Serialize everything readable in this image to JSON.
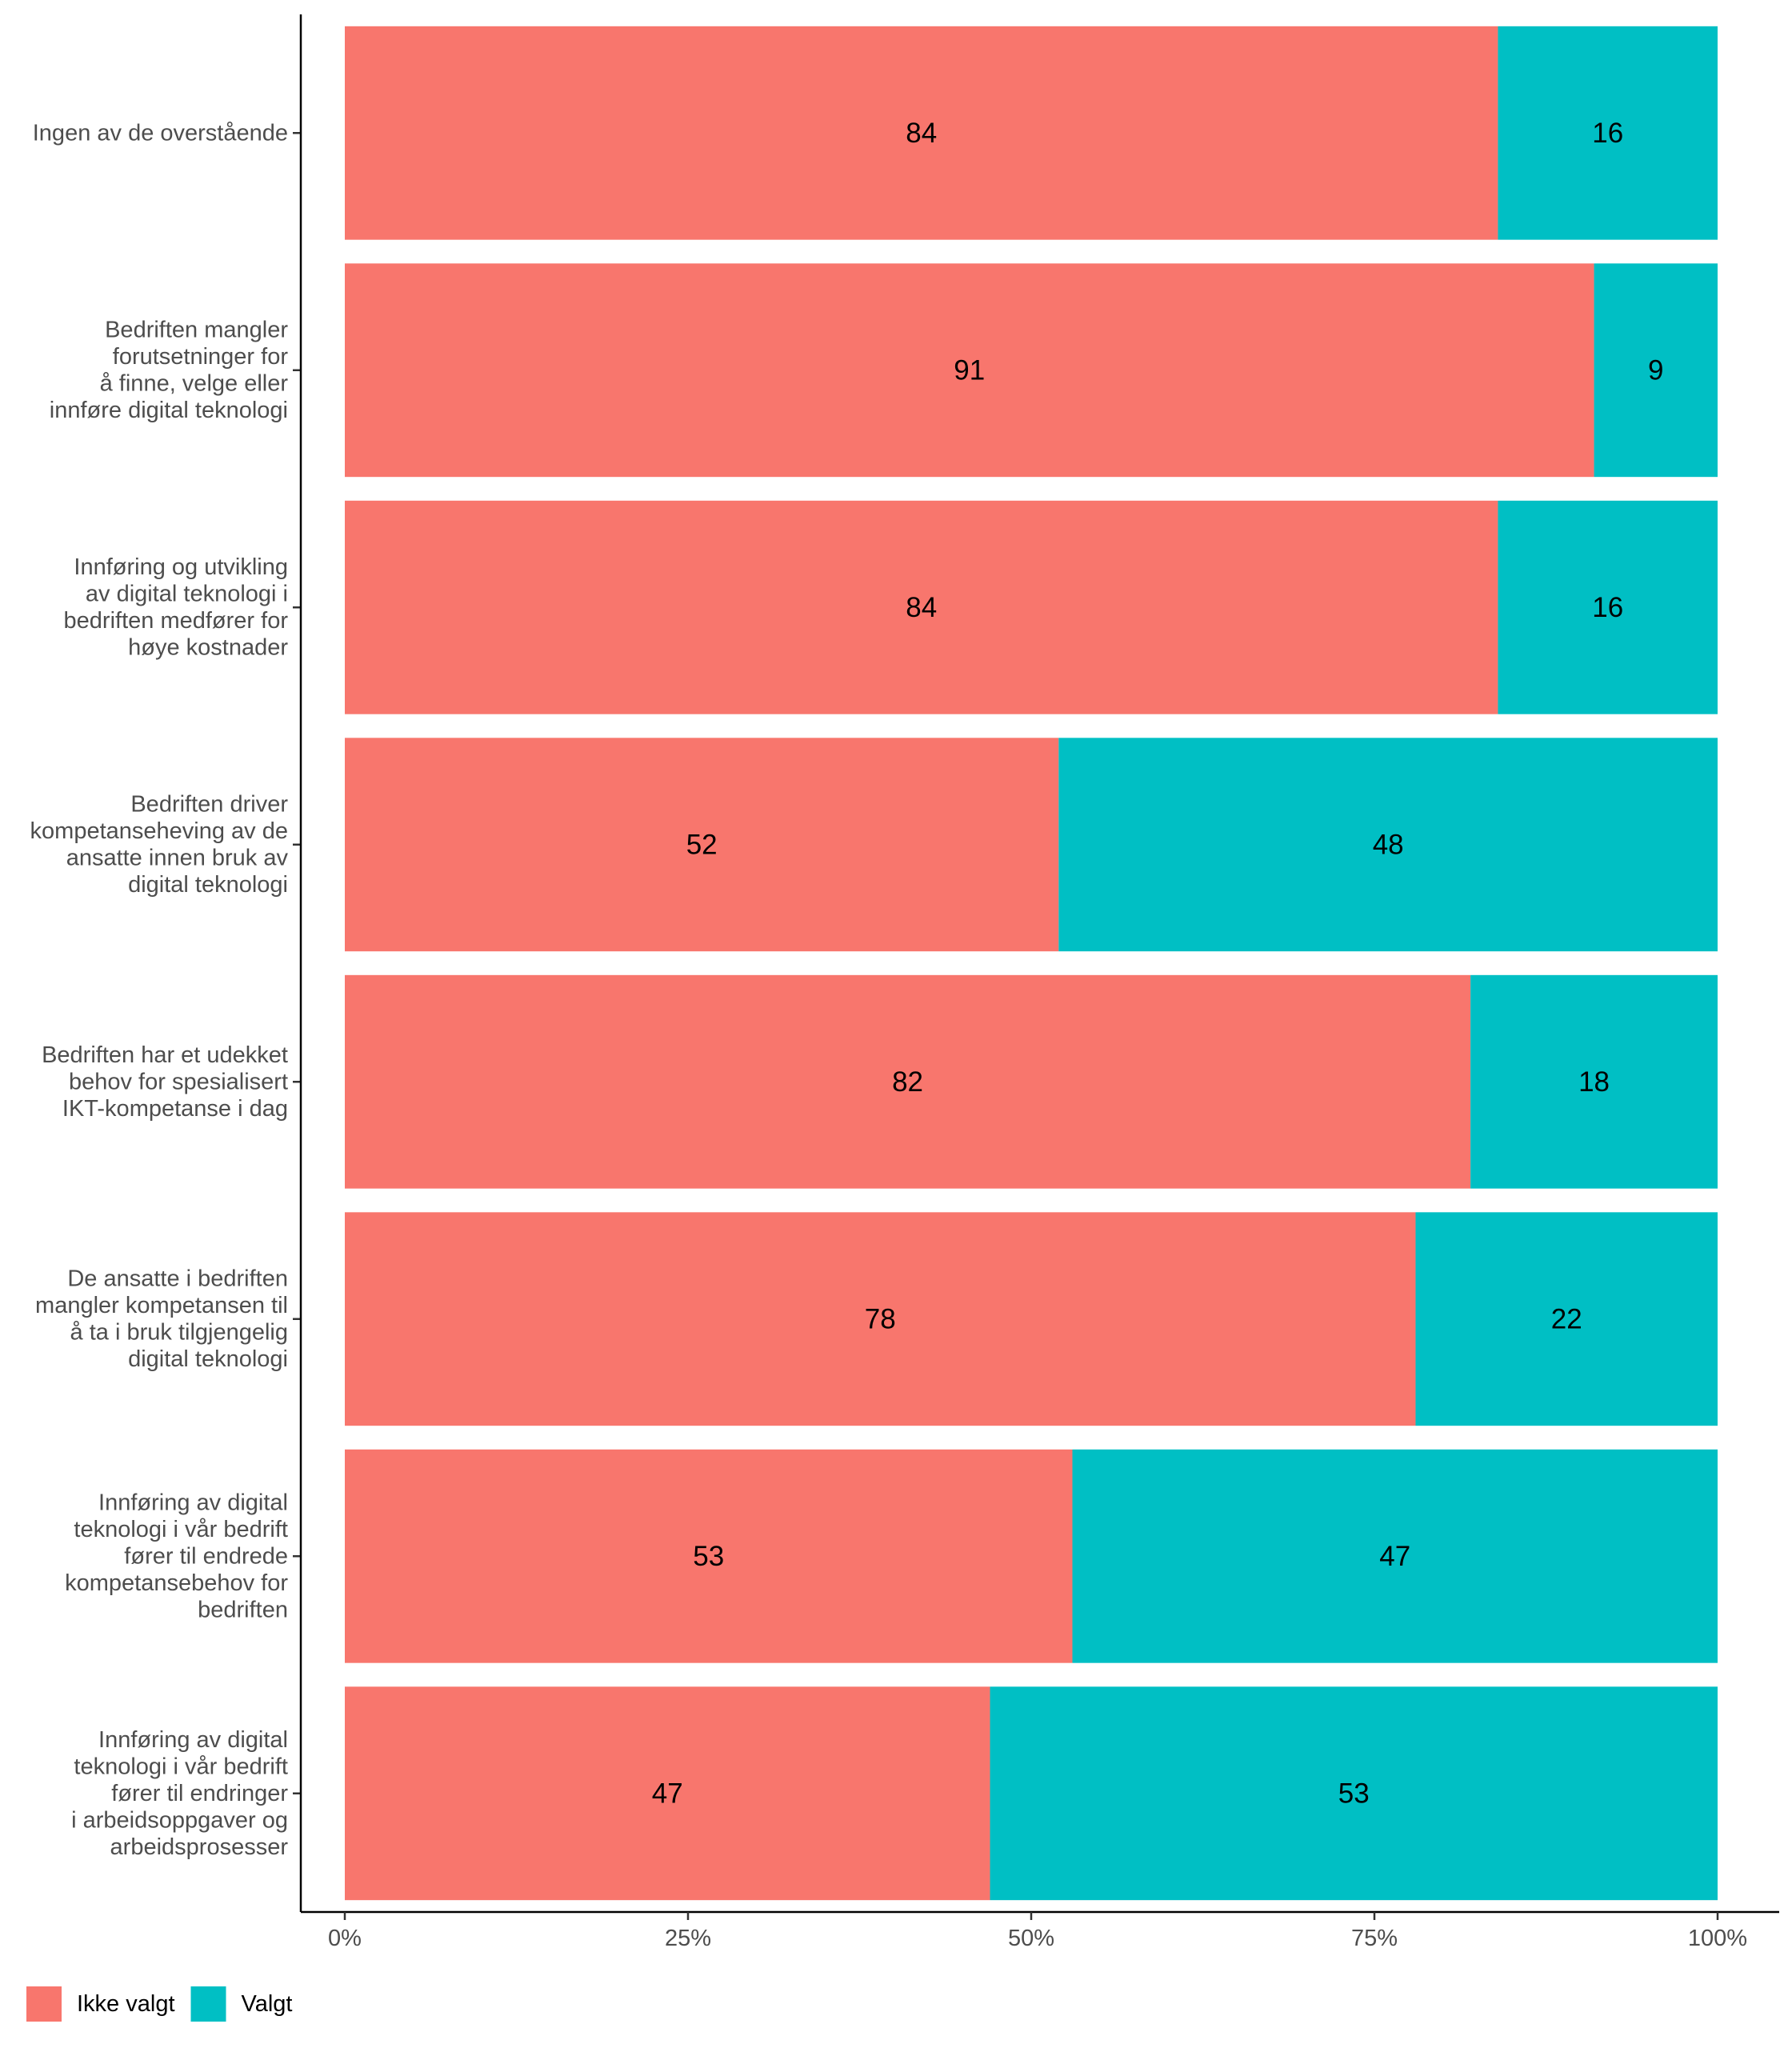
{
  "chart_data": {
    "type": "bar",
    "orientation": "horizontal",
    "stacked": true,
    "percent": true,
    "title": "",
    "xlabel": "",
    "ylabel": "",
    "xlim": [
      0,
      100
    ],
    "x_ticks": [
      "0%",
      "25%",
      "50%",
      "75%",
      "100%"
    ],
    "grid": false,
    "legend_position": "bottom-left",
    "categories": [
      [
        "Ingen av de overstående"
      ],
      [
        "Bedriften mangler",
        "forutsetninger for",
        "å finne, velge eller",
        "innføre digital teknologi"
      ],
      [
        "Innføring og utvikling",
        "av digital teknologi i",
        "bedriften medfører for",
        "høye kostnader"
      ],
      [
        "Bedriften driver",
        "kompetanseheving av de",
        "ansatte innen bruk av",
        "digital teknologi"
      ],
      [
        "Bedriften har et udekket",
        "behov for spesialisert",
        "IKT-kompetanse i dag"
      ],
      [
        "De ansatte i bedriften",
        "mangler kompetansen til",
        "å ta i bruk tilgjengelig",
        "digital teknologi"
      ],
      [
        "Innføring av digital",
        "teknologi i vår bedrift",
        "fører til endrede",
        "kompetansebehov for",
        "bedriften"
      ],
      [
        "Innføring av digital",
        "teknologi i vår bedrift",
        "fører til endringer",
        "i arbeidsoppgaver og",
        "arbeidsprosesser"
      ]
    ],
    "series": [
      {
        "name": "Ikke valgt",
        "color": "#F8766D",
        "values": [
          84,
          91,
          84,
          52,
          82,
          78,
          53,
          47
        ]
      },
      {
        "name": "Valgt",
        "color": "#00BFC4",
        "values": [
          16,
          9,
          16,
          48,
          18,
          22,
          47,
          53
        ]
      }
    ]
  }
}
